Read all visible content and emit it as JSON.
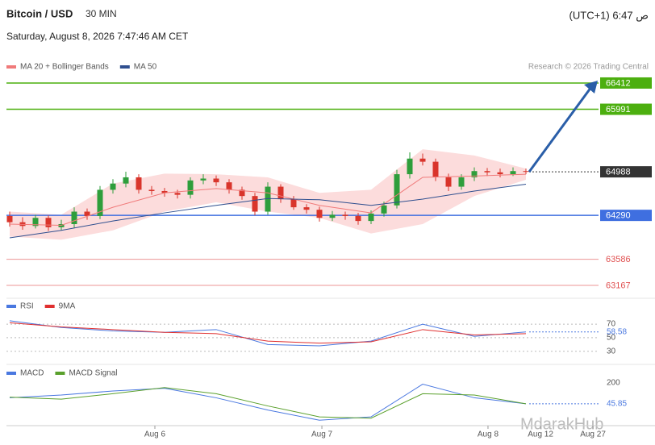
{
  "header": {
    "title": "Bitcoin / USD",
    "interval": "30 MIN",
    "datetime": "Saturday, August 8, 2026 7:47:46 AM CET",
    "clock": "(UTC+1) ص 6:47",
    "watermark": "MdarakHub"
  },
  "chart_data": [
    {
      "type": "candlestick",
      "annotation": "Research © 2026 Trading Central",
      "up_color": "#2e9e3b",
      "down_color": "#d9342b",
      "xlim": [
        -0.25,
        49.25
      ],
      "ylim": [
        63090,
        66515
      ],
      "xticks": [
        {
          "value": 11.25,
          "label": "Aug 6"
        },
        {
          "value": 24.19,
          "label": "Aug 7"
        },
        {
          "value": 37.06,
          "label": "Aug 8"
        },
        {
          "value": 41.13,
          "label": "Aug 12"
        },
        {
          "value": 45.19,
          "label": "Aug 27"
        }
      ],
      "open": [
        64280,
        64180,
        64120,
        64250,
        64100,
        64150,
        64350,
        64280,
        64700,
        64800,
        64900,
        64700,
        64680,
        64650,
        64620,
        64850,
        64880,
        64820,
        64700,
        64600,
        64350,
        64750,
        64550,
        64420,
        64380,
        64250,
        64300,
        64280,
        64200,
        64320,
        64450,
        64950,
        65200,
        65150,
        64900,
        64750,
        64900,
        65000,
        64980,
        64950,
        65000
      ],
      "high": [
        64350,
        64260,
        64300,
        64290,
        64220,
        64420,
        64400,
        64760,
        64870,
        64990,
        64950,
        64760,
        64730,
        64700,
        64900,
        64950,
        64930,
        64870,
        64750,
        64650,
        64820,
        64790,
        64600,
        64470,
        64430,
        64360,
        64350,
        64330,
        64370,
        64510,
        65020,
        65300,
        65280,
        65200,
        64960,
        64950,
        65060,
        65050,
        65040,
        65060,
        65040
      ],
      "low": [
        64110,
        64060,
        64080,
        64040,
        64050,
        64090,
        64220,
        64230,
        64640,
        64740,
        64640,
        64620,
        64590,
        64560,
        64560,
        64790,
        64760,
        64640,
        64540,
        64290,
        64300,
        64490,
        64380,
        64320,
        64190,
        64200,
        64220,
        64140,
        64150,
        64270,
        64400,
        64880,
        65090,
        64840,
        64680,
        64700,
        64840,
        64920,
        64900,
        64920,
        64950
      ],
      "close": [
        64180,
        64120,
        64250,
        64100,
        64150,
        64350,
        64280,
        64700,
        64800,
        64900,
        64700,
        64680,
        64650,
        64620,
        64850,
        64880,
        64820,
        64700,
        64600,
        64350,
        64750,
        64550,
        64420,
        64380,
        64250,
        64300,
        64280,
        64200,
        64320,
        64450,
        64950,
        65200,
        65150,
        64900,
        64750,
        64900,
        65000,
        64980,
        64950,
        65000,
        64988
      ],
      "overlays": [
        {
          "name": "MA 20 + Bollinger Bands",
          "color": "#f07a7a",
          "band_color": "#fcdcdc",
          "x": [
            0,
            4,
            8,
            12,
            16,
            20,
            24,
            28,
            32,
            36,
            40
          ],
          "values": [
            64150,
            64130,
            64420,
            64650,
            64720,
            64650,
            64450,
            64330,
            64900,
            64920,
            64950
          ],
          "upper": [
            64350,
            64300,
            64800,
            64960,
            64950,
            64900,
            64650,
            64700,
            65350,
            65250,
            65040
          ],
          "lower": [
            63950,
            63900,
            64050,
            64350,
            64500,
            64350,
            64250,
            64000,
            64150,
            64600,
            64860
          ]
        },
        {
          "name": "MA 50",
          "color": "#2f4f8f",
          "x": [
            0,
            4,
            8,
            12,
            16,
            20,
            24,
            28,
            32,
            36,
            40
          ],
          "values": [
            63930,
            64050,
            64200,
            64330,
            64450,
            64560,
            64540,
            64450,
            64550,
            64680,
            64790
          ]
        }
      ],
      "levels": [
        {
          "value": 66412,
          "color": "#4caf0f",
          "label_style": "box",
          "line": "solid"
        },
        {
          "value": 65991,
          "color": "#4caf0f",
          "label_style": "box",
          "line": "solid"
        },
        {
          "value": 64988,
          "color": "#333333",
          "label_style": "box",
          "line": "dotted"
        },
        {
          "value": 64290,
          "color": "#3f6fe0",
          "label_style": "box",
          "line": "solid"
        },
        {
          "value": 63586,
          "color": "#e05050",
          "label_style": "text",
          "line": "solid"
        },
        {
          "value": 63167,
          "color": "#e05050",
          "label_style": "text",
          "line": "solid"
        }
      ]
    },
    {
      "type": "line",
      "ylim": [
        19,
        82
      ],
      "yticks": [
        70,
        50,
        30
      ],
      "grid": true,
      "xlim": [
        -0.25,
        49.25
      ],
      "series": [
        {
          "name": "RSI",
          "color": "#4a78e0",
          "x": [
            0,
            4,
            8,
            12,
            16,
            20,
            24,
            28,
            32,
            36,
            40
          ],
          "values": [
            75,
            65,
            60,
            58,
            62,
            40,
            38,
            45,
            70,
            52,
            58.58
          ]
        },
        {
          "name": "9MA",
          "color": "#e03030",
          "x": [
            0,
            4,
            8,
            12,
            16,
            20,
            24,
            28,
            32,
            36,
            40
          ],
          "values": [
            72,
            66,
            62,
            58,
            56,
            45,
            42,
            44,
            62,
            54,
            56
          ]
        }
      ]
    },
    {
      "type": "line",
      "ylim": [
        -97,
        288
      ],
      "yticks": [
        200
      ],
      "grid": false,
      "xlim": [
        -0.25,
        49.25
      ],
      "series": [
        {
          "name": "MACD",
          "color": "#4a78e0",
          "x": [
            0,
            4,
            8,
            12,
            16,
            20,
            24,
            28,
            32,
            36,
            40
          ],
          "values": [
            90,
            110,
            140,
            160,
            90,
            0,
            -75,
            -50,
            190,
            90,
            45.85
          ]
        },
        {
          "name": "MACD Signal",
          "color": "#5aa02c",
          "x": [
            0,
            4,
            8,
            12,
            16,
            20,
            24,
            28,
            32,
            36,
            40
          ],
          "values": [
            95,
            80,
            120,
            165,
            120,
            30,
            -50,
            -60,
            120,
            110,
            45.85
          ]
        }
      ]
    }
  ]
}
